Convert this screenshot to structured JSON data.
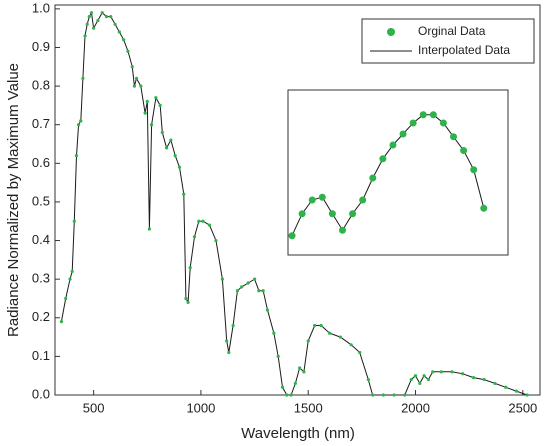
{
  "chart_data": [
    {
      "type": "line",
      "xlabel": "Wavelength (nm)",
      "ylabel": "Radiance Normalized by Maximum Value",
      "xlim": [
        320,
        2580
      ],
      "xticks": [
        500,
        1000,
        1500,
        2000,
        2500
      ],
      "ylim": [
        0,
        1.01
      ],
      "yticks": [
        {
          "value": 0,
          "label": "0.0"
        },
        0.1,
        0.2,
        0.3,
        0.4,
        0.5,
        0.6,
        0.7,
        0.8,
        0.9,
        {
          "value": 1,
          "label": "1.0"
        }
      ],
      "legend": "upper right",
      "x": [
        350,
        370,
        390,
        400,
        410,
        420,
        430,
        440,
        450,
        460,
        470,
        480,
        490,
        500,
        520,
        540,
        560,
        580,
        600,
        620,
        640,
        660,
        680,
        690,
        700,
        720,
        740,
        750,
        760,
        770,
        790,
        810,
        820,
        840,
        860,
        880,
        900,
        920,
        930,
        940,
        950,
        970,
        990,
        1010,
        1040,
        1070,
        1100,
        1120,
        1130,
        1150,
        1170,
        1190,
        1220,
        1250,
        1270,
        1290,
        1310,
        1340,
        1360,
        1380,
        1400,
        1420,
        1440,
        1460,
        1480,
        1500,
        1530,
        1560,
        1600,
        1650,
        1700,
        1740,
        1780,
        1800,
        1850,
        1900,
        1950,
        1980,
        2000,
        2020,
        2040,
        2060,
        2080,
        2120,
        2170,
        2220,
        2270,
        2320,
        2370,
        2420,
        2470,
        2520
      ],
      "series": [
        {
          "name": "Orginal Data",
          "color": "#2db34a",
          "marker": "dot",
          "values": [
            0.19,
            0.25,
            0.3,
            0.32,
            0.45,
            0.62,
            0.7,
            0.71,
            0.82,
            0.93,
            0.96,
            0.98,
            0.99,
            0.95,
            0.97,
            0.99,
            0.98,
            0.98,
            0.96,
            0.94,
            0.92,
            0.89,
            0.85,
            0.8,
            0.82,
            0.8,
            0.73,
            0.76,
            0.43,
            0.7,
            0.77,
            0.75,
            0.68,
            0.64,
            0.66,
            0.62,
            0.59,
            0.52,
            0.25,
            0.24,
            0.33,
            0.41,
            0.45,
            0.45,
            0.44,
            0.4,
            0.3,
            0.14,
            0.11,
            0.18,
            0.27,
            0.28,
            0.29,
            0.3,
            0.27,
            0.27,
            0.22,
            0.16,
            0.1,
            0.02,
            0.0,
            0.0,
            0.03,
            0.07,
            0.06,
            0.14,
            0.18,
            0.18,
            0.16,
            0.15,
            0.13,
            0.11,
            0.04,
            0.0,
            0.0,
            0.0,
            0.0,
            0.04,
            0.05,
            0.03,
            0.05,
            0.04,
            0.06,
            0.06,
            0.06,
            0.055,
            0.045,
            0.04,
            0.03,
            0.02,
            0.01,
            0.0
          ]
        },
        {
          "name": "Interpolated Data",
          "color": "#1b1b1b",
          "marker": "line",
          "values": [
            0.19,
            0.25,
            0.3,
            0.32,
            0.45,
            0.62,
            0.7,
            0.71,
            0.82,
            0.93,
            0.96,
            0.98,
            0.99,
            0.95,
            0.97,
            0.99,
            0.98,
            0.98,
            0.96,
            0.94,
            0.92,
            0.89,
            0.85,
            0.8,
            0.82,
            0.8,
            0.73,
            0.76,
            0.43,
            0.7,
            0.77,
            0.75,
            0.68,
            0.64,
            0.66,
            0.62,
            0.59,
            0.52,
            0.25,
            0.24,
            0.33,
            0.41,
            0.45,
            0.45,
            0.44,
            0.4,
            0.3,
            0.14,
            0.11,
            0.18,
            0.27,
            0.28,
            0.29,
            0.3,
            0.27,
            0.27,
            0.22,
            0.16,
            0.1,
            0.02,
            0.0,
            0.0,
            0.03,
            0.07,
            0.06,
            0.14,
            0.18,
            0.18,
            0.16,
            0.15,
            0.13,
            0.11,
            0.04,
            0.0,
            0.0,
            0.0,
            0.0,
            0.04,
            0.05,
            0.03,
            0.05,
            0.04,
            0.06,
            0.06,
            0.06,
            0.055,
            0.045,
            0.04,
            0.03,
            0.02,
            0.01,
            0.0
          ]
        }
      ]
    },
    {
      "type": "line",
      "xlim": [
        1178,
        1287
      ],
      "ylim": [
        0.25,
        0.31
      ],
      "x": [
        1180,
        1185,
        1190,
        1195,
        1200,
        1205,
        1210,
        1215,
        1220,
        1225,
        1230,
        1235,
        1240,
        1245,
        1250,
        1255,
        1260,
        1265,
        1270,
        1275
      ],
      "series": [
        {
          "color": "#2db34a",
          "marker": "dot",
          "values": [
            0.257,
            0.265,
            0.27,
            0.271,
            0.265,
            0.259,
            0.265,
            0.27,
            0.278,
            0.285,
            0.29,
            0.294,
            0.298,
            0.301,
            0.301,
            0.298,
            0.293,
            0.288,
            0.281,
            0.267
          ]
        },
        {
          "color": "#1b1b1b",
          "marker": "line",
          "values": [
            0.257,
            0.265,
            0.27,
            0.271,
            0.265,
            0.259,
            0.265,
            0.27,
            0.278,
            0.285,
            0.29,
            0.294,
            0.298,
            0.301,
            0.301,
            0.298,
            0.293,
            0.288,
            0.281,
            0.267
          ]
        }
      ]
    }
  ]
}
